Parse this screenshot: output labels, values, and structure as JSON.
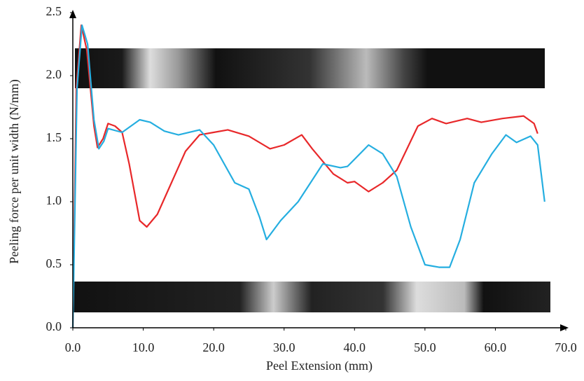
{
  "chart_data": {
    "type": "line",
    "x_label": "Peel Extension (mm)",
    "y_label": "Peeling force per unit width (N/mm)",
    "xlim": [
      0,
      70
    ],
    "ylim": [
      0,
      2.5
    ],
    "xticks": [
      {
        "value": 0,
        "label": "0.0"
      },
      {
        "value": 10,
        "label": "10.0"
      },
      {
        "value": 20,
        "label": "20.0"
      },
      {
        "value": 30,
        "label": "30.0"
      },
      {
        "value": 40,
        "label": "40.0"
      },
      {
        "value": 50,
        "label": "50.0"
      },
      {
        "value": 60,
        "label": "60.0"
      },
      {
        "value": 70,
        "label": "70.0"
      }
    ],
    "yticks": [
      {
        "value": 0,
        "label": "0.0"
      },
      {
        "value": 0.5,
        "label": "0.5"
      },
      {
        "value": 1,
        "label": "1.0"
      },
      {
        "value": 1.5,
        "label": "1.5"
      },
      {
        "value": 2,
        "label": "2.0"
      },
      {
        "value": 2.5,
        "label": "2.5"
      }
    ],
    "series": [
      {
        "color": "#e8282a",
        "x": [
          0,
          0.5,
          1.2,
          2,
          3,
          3.5,
          4.3,
          5,
          6,
          7,
          8,
          9.5,
          10.5,
          12,
          14,
          16,
          18,
          20,
          22,
          25,
          28,
          30,
          32.5,
          34,
          37,
          39,
          40,
          42,
          44,
          46,
          49,
          51,
          53,
          56,
          58,
          61,
          64,
          65.5,
          66
        ],
        "values": [
          0,
          1.9,
          2.4,
          2.2,
          1.6,
          1.43,
          1.5,
          1.62,
          1.6,
          1.55,
          1.3,
          0.85,
          0.8,
          0.9,
          1.15,
          1.4,
          1.53,
          1.55,
          1.57,
          1.52,
          1.42,
          1.45,
          1.53,
          1.42,
          1.22,
          1.15,
          1.16,
          1.08,
          1.15,
          1.25,
          1.6,
          1.66,
          1.62,
          1.66,
          1.63,
          1.66,
          1.68,
          1.62,
          1.54
        ]
      },
      {
        "color": "#25aee0",
        "x": [
          0,
          0.6,
          1.3,
          2.1,
          3,
          3.7,
          4.4,
          5,
          7,
          9.5,
          11,
          13,
          15,
          18,
          20,
          23,
          25,
          26.5,
          27.5,
          29.5,
          32,
          35.5,
          38,
          39,
          42,
          44,
          46,
          48,
          50,
          52,
          53.5,
          55,
          57,
          59.5,
          61.5,
          63,
          65,
          66,
          67
        ],
        "values": [
          0,
          1.9,
          2.4,
          2.25,
          1.65,
          1.42,
          1.48,
          1.58,
          1.55,
          1.65,
          1.63,
          1.56,
          1.53,
          1.57,
          1.45,
          1.15,
          1.1,
          0.88,
          0.7,
          0.85,
          1.0,
          1.3,
          1.27,
          1.28,
          1.45,
          1.38,
          1.2,
          0.8,
          0.5,
          0.48,
          0.48,
          0.7,
          1.15,
          1.38,
          1.53,
          1.47,
          1.52,
          1.45,
          1.0
        ]
      }
    ]
  }
}
